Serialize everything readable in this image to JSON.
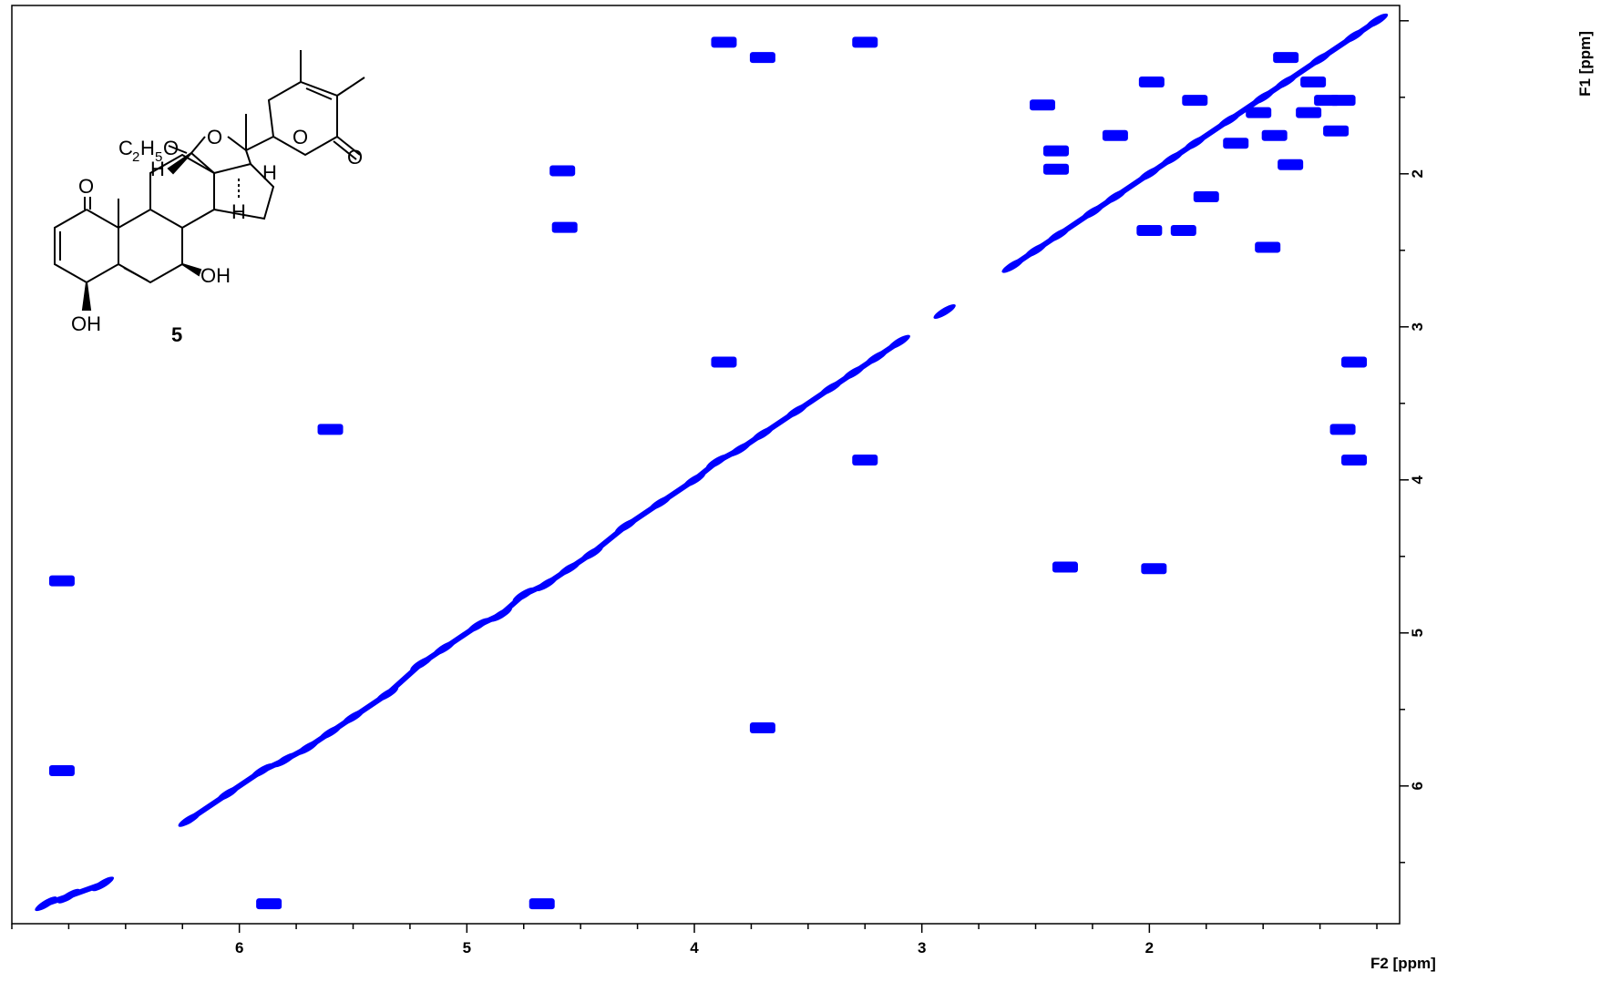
{
  "chart_data": {
    "type": "scatter",
    "title": "",
    "xlabel": "F2 [ppm]",
    "ylabel": "F1 [ppm]",
    "xlim": [
      7.0,
      0.9
    ],
    "ylim": [
      0.9,
      6.9
    ],
    "x_ticks": [
      6,
      5,
      4,
      3,
      2
    ],
    "y_ticks": [
      2,
      3,
      4,
      5,
      6
    ],
    "x_ticks_per_label": 4,
    "y_ticks_per_label": 2,
    "grid": false,
    "peak_color": "#0000ff",
    "diagonal": {
      "name": "diagonal",
      "points": [
        [
          6.85,
          6.77
        ],
        [
          6.75,
          6.72
        ],
        [
          6.6,
          6.64
        ],
        [
          6.22,
          6.22
        ],
        [
          6.05,
          6.05
        ],
        [
          5.9,
          5.9
        ],
        [
          5.8,
          5.83
        ],
        [
          5.7,
          5.75
        ],
        [
          5.6,
          5.65
        ],
        [
          5.5,
          5.55
        ],
        [
          5.35,
          5.4
        ],
        [
          5.2,
          5.2
        ],
        [
          5.1,
          5.1
        ],
        [
          4.95,
          4.95
        ],
        [
          4.85,
          4.88
        ],
        [
          4.75,
          4.75
        ],
        [
          4.65,
          4.68
        ],
        [
          4.55,
          4.58
        ],
        [
          4.45,
          4.48
        ],
        [
          4.3,
          4.3
        ],
        [
          4.15,
          4.15
        ],
        [
          4.0,
          4.0
        ],
        [
          3.9,
          3.88
        ],
        [
          3.8,
          3.8
        ],
        [
          3.7,
          3.7
        ],
        [
          3.55,
          3.55
        ],
        [
          3.4,
          3.4
        ],
        [
          3.3,
          3.3
        ],
        [
          3.2,
          3.2
        ],
        [
          3.1,
          3.1
        ],
        [
          2.9,
          2.9
        ],
        [
          2.6,
          2.6
        ],
        [
          2.5,
          2.5
        ],
        [
          2.4,
          2.4
        ],
        [
          2.25,
          2.25
        ],
        [
          2.15,
          2.15
        ],
        [
          2.0,
          2.0
        ],
        [
          1.9,
          1.9
        ],
        [
          1.8,
          1.8
        ],
        [
          1.65,
          1.65
        ],
        [
          1.5,
          1.5
        ],
        [
          1.4,
          1.4
        ],
        [
          1.25,
          1.25
        ],
        [
          1.1,
          1.1
        ],
        [
          1.0,
          1.0
        ]
      ]
    },
    "cross_peaks": [
      {
        "x": 6.78,
        "y": 5.9
      },
      {
        "x": 6.78,
        "y": 4.66
      },
      {
        "x": 5.87,
        "y": 6.77
      },
      {
        "x": 4.67,
        "y": 6.77
      },
      {
        "x": 5.6,
        "y": 3.67
      },
      {
        "x": 4.57,
        "y": 2.35
      },
      {
        "x": 4.58,
        "y": 1.98
      },
      {
        "x": 3.87,
        "y": 1.14
      },
      {
        "x": 3.87,
        "y": 3.23
      },
      {
        "x": 3.7,
        "y": 1.24
      },
      {
        "x": 3.7,
        "y": 5.62
      },
      {
        "x": 3.25,
        "y": 1.14
      },
      {
        "x": 3.25,
        "y": 3.87
      },
      {
        "x": 2.47,
        "y": 1.55
      },
      {
        "x": 2.41,
        "y": 1.85
      },
      {
        "x": 2.41,
        "y": 1.97
      },
      {
        "x": 2.37,
        "y": 4.57
      },
      {
        "x": 2.15,
        "y": 1.75
      },
      {
        "x": 2.0,
        "y": 2.37
      },
      {
        "x": 1.99,
        "y": 1.4
      },
      {
        "x": 1.98,
        "y": 4.58
      },
      {
        "x": 1.85,
        "y": 2.37
      },
      {
        "x": 1.8,
        "y": 1.52
      },
      {
        "x": 1.75,
        "y": 2.15
      },
      {
        "x": 1.62,
        "y": 1.8
      },
      {
        "x": 1.52,
        "y": 1.6
      },
      {
        "x": 1.48,
        "y": 2.48
      },
      {
        "x": 1.45,
        "y": 1.75
      },
      {
        "x": 1.4,
        "y": 1.24
      },
      {
        "x": 1.38,
        "y": 1.94
      },
      {
        "x": 1.3,
        "y": 1.6
      },
      {
        "x": 1.28,
        "y": 1.4
      },
      {
        "x": 1.22,
        "y": 1.52
      },
      {
        "x": 1.18,
        "y": 1.72
      },
      {
        "x": 1.15,
        "y": 3.67
      },
      {
        "x": 1.15,
        "y": 1.52
      },
      {
        "x": 1.1,
        "y": 3.23
      },
      {
        "x": 1.1,
        "y": 3.87
      }
    ]
  },
  "structure": {
    "compound_number": "5",
    "atom_labels": {
      "ethoxy_c": "C",
      "ethoxy_sub2": "2",
      "ethoxy_h": "H",
      "ethoxy_sub5": "5",
      "ethoxy_o": "O",
      "h_hemiacetal": "H",
      "ring_o": "O",
      "lactone_ring_o": "O",
      "lactone_carbonyl_o": "O",
      "h_c22": "H",
      "h_c17": "H",
      "ketone_o": "O",
      "oh_c7": "OH",
      "oh_c4": "OH"
    }
  }
}
